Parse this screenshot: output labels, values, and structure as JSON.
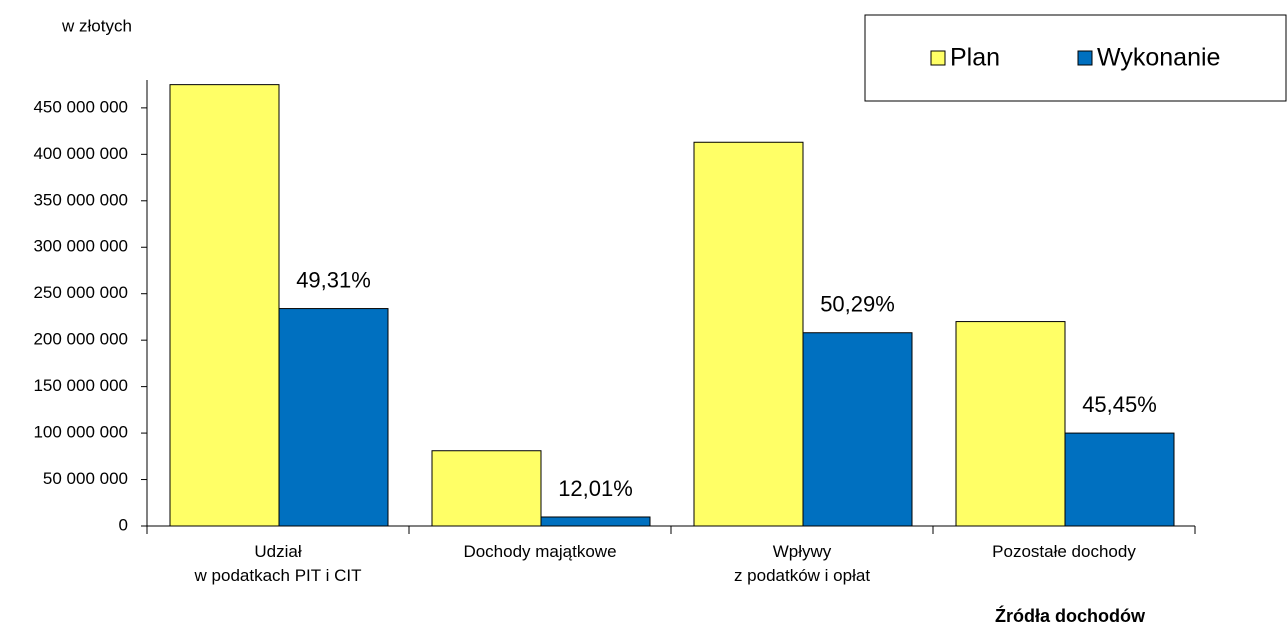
{
  "chart_data": {
    "type": "bar",
    "subtitle": "w złotych",
    "x_label": "Źródła dochodów",
    "categories": [
      [
        "Udział",
        "w podatkach PIT i CIT"
      ],
      [
        "Dochody majątkowe"
      ],
      [
        "Wpływy",
        "z podatków i opłat"
      ],
      [
        "Pozostałe dochody"
      ]
    ],
    "series": [
      {
        "name": "Plan",
        "color": "#ffff66",
        "values": [
          475000000,
          81000000,
          413000000,
          220000000
        ]
      },
      {
        "name": "Wykonanie",
        "color": "#0070c0",
        "values": [
          234000000,
          9700000,
          208000000,
          100000000
        ]
      }
    ],
    "annotations": [
      "49,31%",
      "12,01%",
      "50,29%",
      "45,45%"
    ],
    "ylim": [
      0,
      480000000
    ],
    "yticks": [
      0,
      {
        "value": 50000000,
        "label": "50 000 000"
      },
      {
        "value": 100000000,
        "label": "100 000 000"
      },
      {
        "value": 150000000,
        "label": "150 000 000"
      },
      {
        "value": 200000000,
        "label": "200 000 000"
      },
      {
        "value": 250000000,
        "label": "250 000 000"
      },
      {
        "value": 300000000,
        "label": "300 000 000"
      },
      {
        "value": 350000000,
        "label": "350 000 000"
      },
      {
        "value": 400000000,
        "label": "400 000 000"
      },
      {
        "value": 450000000,
        "label": "450 000 000"
      }
    ],
    "grid": false,
    "legend": "top-right"
  }
}
